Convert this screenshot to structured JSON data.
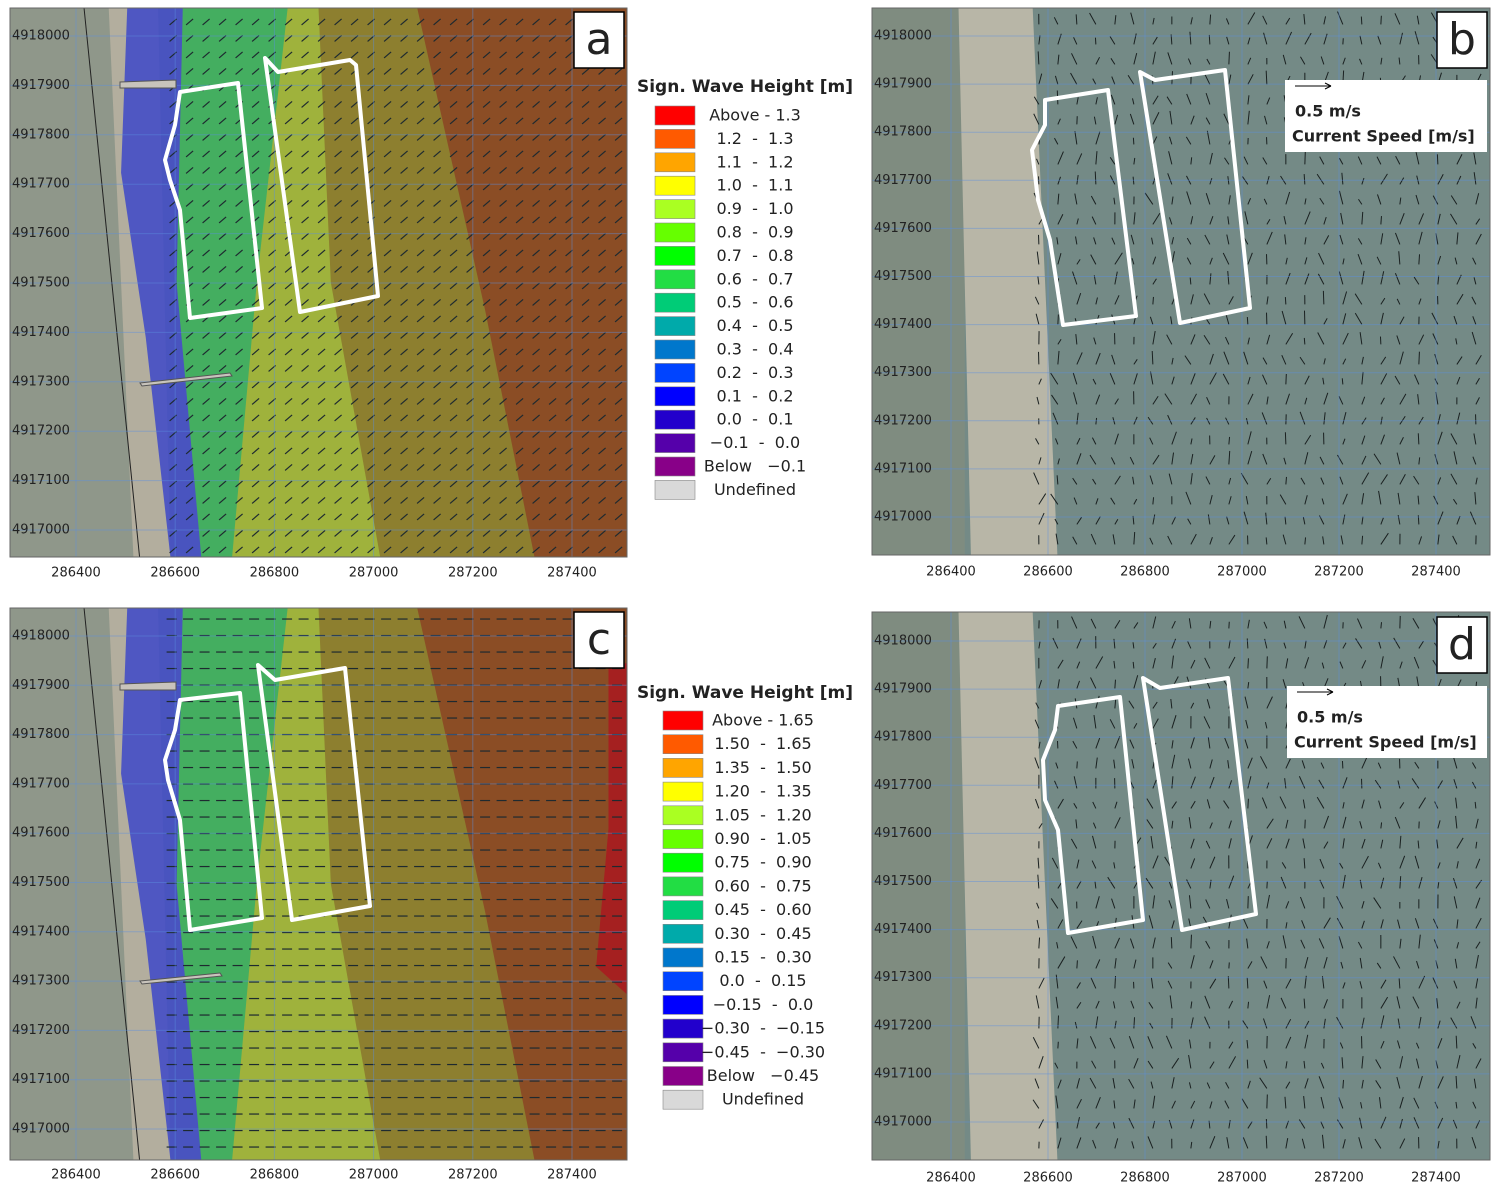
{
  "panels": [
    {
      "label": "a",
      "xticks": [
        286400,
        286600,
        286800,
        287000,
        287200,
        287400
      ],
      "yticks": [
        4918000,
        4917900,
        4917800,
        4917700,
        4917600,
        4917500,
        4917400,
        4917300,
        4917200,
        4917100,
        4917000
      ],
      "legend": {
        "title": "Sign. Wave Height [m]",
        "entries": [
          {
            "label": "Above - 1.3",
            "color": "#ff0000"
          },
          {
            "label": "1.2  -  1.3",
            "color": "#ff5a00"
          },
          {
            "label": "1.1  -  1.2",
            "color": "#ffa500"
          },
          {
            "label": "1.0  -  1.1",
            "color": "#ffff00"
          },
          {
            "label": "0.9  -  1.0",
            "color": "#aaff22"
          },
          {
            "label": "0.8  -  0.9",
            "color": "#66ff00"
          },
          {
            "label": "0.7  -  0.8",
            "color": "#00ff00"
          },
          {
            "label": "0.6  -  0.7",
            "color": "#22dd44"
          },
          {
            "label": "0.5  -  0.6",
            "color": "#00cc77"
          },
          {
            "label": "0.4  -  0.5",
            "color": "#00aaaa"
          },
          {
            "label": "0.3  -  0.4",
            "color": "#0077cc"
          },
          {
            "label": "0.2  -  0.3",
            "color": "#0044ff"
          },
          {
            "label": "0.1  -  0.2",
            "color": "#0000ff"
          },
          {
            "label": "0.0  -  0.1",
            "color": "#2200cc"
          },
          {
            "label": "−0.1  -  0.0",
            "color": "#5500aa"
          },
          {
            "label": "Below   −0.1",
            "color": "#880088"
          },
          {
            "label": "Undefined",
            "color": "#d9d9d9"
          }
        ]
      }
    },
    {
      "label": "b",
      "xticks": [
        286400,
        286600,
        286800,
        287000,
        287200,
        287400
      ],
      "yticks": [
        4918000,
        4917900,
        4917800,
        4917700,
        4917600,
        4917500,
        4917400,
        4917300,
        4917200,
        4917100,
        4917000
      ],
      "vector_legend": {
        "scale": "0.5 m/s",
        "title": "Current Speed [m/s]"
      }
    },
    {
      "label": "c",
      "xticks": [
        286400,
        286600,
        286800,
        287000,
        287200,
        287400
      ],
      "yticks": [
        4918000,
        4917900,
        4917800,
        4917700,
        4917600,
        4917500,
        4917400,
        4917300,
        4917200,
        4917100,
        4917000
      ],
      "legend": {
        "title": "Sign. Wave Height [m]",
        "entries": [
          {
            "label": "Above - 1.65",
            "color": "#ff0000"
          },
          {
            "label": "1.50  -  1.65",
            "color": "#ff5a00"
          },
          {
            "label": "1.35  -  1.50",
            "color": "#ffa500"
          },
          {
            "label": "1.20  -  1.35",
            "color": "#ffff00"
          },
          {
            "label": "1.05  -  1.20",
            "color": "#aaff22"
          },
          {
            "label": "0.90  -  1.05",
            "color": "#66ff00"
          },
          {
            "label": "0.75  -  0.90",
            "color": "#00ff00"
          },
          {
            "label": "0.60  -  0.75",
            "color": "#22dd44"
          },
          {
            "label": "0.45  -  0.60",
            "color": "#00cc77"
          },
          {
            "label": "0.30  -  0.45",
            "color": "#00aaaa"
          },
          {
            "label": "0.15  -  0.30",
            "color": "#0077cc"
          },
          {
            "label": "0.0  -  0.15",
            "color": "#0044ff"
          },
          {
            "label": "−0.15  -  0.0",
            "color": "#0000ff"
          },
          {
            "label": "−0.30  -  −0.15",
            "color": "#2200cc"
          },
          {
            "label": "−0.45  -  −0.30",
            "color": "#5500aa"
          },
          {
            "label": "Below   −0.45",
            "color": "#880088"
          },
          {
            "label": "Undefined",
            "color": "#d9d9d9"
          }
        ]
      }
    },
    {
      "label": "d",
      "xticks": [
        286400,
        286600,
        286800,
        287000,
        287200,
        287400
      ],
      "yticks": [
        4918000,
        4917900,
        4917800,
        4917700,
        4917600,
        4917500,
        4917400,
        4917300,
        4917200,
        4917100,
        4917000
      ],
      "vector_legend": {
        "scale": "0.5 m/s",
        "title": "Current Speed [m/s]"
      }
    }
  ]
}
